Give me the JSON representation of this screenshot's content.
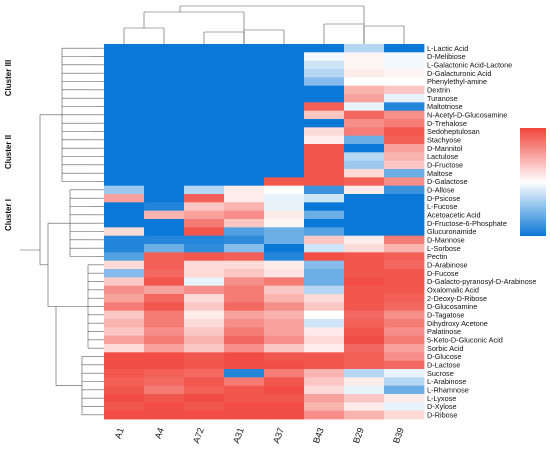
{
  "chart_data": {
    "type": "heatmap",
    "title": "",
    "xlabel": "",
    "ylabel": "",
    "columns": [
      "A1",
      "A4",
      "A72",
      "A31",
      "A37",
      "B43",
      "B29",
      "B39"
    ],
    "rows": [
      "L-Lactic Acid",
      "D-Melibiose",
      "L-Galactonic Acid-Lactone",
      "D-Galacturonic Acid",
      "Phenylethyl-amine",
      "Dextrin",
      "Turanose",
      "Maltotriose",
      "N-Acetyl-D-Glucosamine",
      "D-Trehalose",
      "Sedoheptulosan",
      "Stachyose",
      "D-Mannitol",
      "Lactulose",
      "D-Fructose",
      "Maltose",
      "D-Galactose",
      "D-Allose",
      "D-Psicose",
      "L-Fucose",
      "Acetoacetic Acid",
      "D-Fructose-6-Phosphate",
      "Glucuronamide",
      "D-Mannose",
      "L-Sorbose",
      "Pectin",
      "D-Arabinose",
      "D-Fucose",
      "D-Galacto-pyranosyl-D-Arabinose",
      "Oxalomalic Acid",
      "2-Deoxy-D-Ribose",
      "D-Glucosamine",
      "D-Tagatose",
      "Dihydroxy Acetone",
      "Palatinose",
      "5-Keto-D-Gluconic Acid",
      "Sorbic Acid",
      "D-Glucose",
      "D-Lactose",
      "Sucrose",
      "L-Arabinose",
      "L-Rhamnose",
      "L-Lyxose",
      "D-Xylose",
      "D-Ribose"
    ],
    "values": [
      [
        -1,
        -1,
        -1,
        -1,
        -1,
        -1,
        -0.3,
        -1
      ],
      [
        -1,
        -1,
        -1,
        -1,
        -1,
        -0.05,
        0.05,
        -0.05
      ],
      [
        -1,
        -1,
        -1,
        -1,
        -1,
        -0.2,
        0.05,
        -0.05
      ],
      [
        -1,
        -1,
        -1,
        -1,
        -1,
        -0.3,
        0.1,
        0.05
      ],
      [
        -1,
        -1,
        -1,
        -1,
        -1,
        -0.5,
        0,
        0
      ],
      [
        -1,
        -1,
        -1,
        -1,
        -1,
        -1,
        0.4,
        0.3
      ],
      [
        -1,
        -1,
        -1,
        -1,
        -1,
        -1,
        0.5,
        -0.1
      ],
      [
        -1,
        -1,
        -1,
        -1,
        -1,
        0.85,
        -0.1,
        -0.9
      ],
      [
        -1,
        -1,
        -1,
        -1,
        -1,
        0.3,
        0.8,
        0.6
      ],
      [
        -1,
        -1,
        -1,
        -1,
        -1,
        -1,
        0.6,
        0.7
      ],
      [
        -1,
        -1,
        -1,
        -1,
        -1,
        0.2,
        0.7,
        0.9
      ],
      [
        -1,
        -1,
        -1,
        -1,
        -1,
        0.1,
        -0.6,
        0.85
      ],
      [
        -1,
        -1,
        -1,
        -1,
        -1,
        0.9,
        -1,
        0.5
      ],
      [
        -1,
        -1,
        -1,
        -1,
        -1,
        0.9,
        -0.3,
        0.4
      ],
      [
        -1,
        -1,
        -1,
        -1,
        -1,
        0.9,
        -0.4,
        0.3
      ],
      [
        -1,
        -1,
        -1,
        -1,
        -1,
        0.9,
        0.2,
        -0.6
      ],
      [
        -1,
        -1,
        -1,
        -1,
        0.9,
        0.9,
        0.85,
        0.6
      ],
      [
        -0.4,
        -1,
        -0.3,
        0.1,
        0,
        -0.8,
        0.1,
        -0.8
      ],
      [
        0.5,
        -1,
        0.85,
        0.1,
        -0.1,
        -0.2,
        -1,
        -1
      ],
      [
        -1,
        -0.9,
        0.3,
        0.4,
        -0.1,
        -1,
        -1,
        -1
      ],
      [
        -1,
        0.4,
        0.5,
        0.6,
        0.1,
        -0.6,
        -1,
        -1
      ],
      [
        -1,
        -1,
        0.7,
        0.3,
        0.05,
        -1,
        -1,
        -1
      ],
      [
        0.2,
        -1,
        0.9,
        -0.7,
        -0.6,
        -0.7,
        -1,
        -1
      ],
      [
        -0.9,
        -0.9,
        -0.9,
        -0.85,
        -0.6,
        0.3,
        0.1,
        0.7
      ],
      [
        -0.9,
        -0.6,
        -0.85,
        -0.5,
        -1,
        -0.2,
        0.2,
        0.4
      ],
      [
        -0.7,
        0.85,
        0.9,
        0.85,
        -0.9,
        0.95,
        0.9,
        0.85
      ],
      [
        0.2,
        0.85,
        0.2,
        0.2,
        0.1,
        -0.5,
        0.9,
        0.8
      ],
      [
        -0.5,
        0.8,
        0.2,
        0.3,
        0.15,
        -0.6,
        0.9,
        0.9
      ],
      [
        0.3,
        0.9,
        -0.1,
        0.6,
        0.7,
        -0.6,
        0.95,
        0.9
      ],
      [
        0.6,
        0.5,
        0.6,
        0.7,
        0.3,
        -0.3,
        0.9,
        0.9
      ],
      [
        0.5,
        0.8,
        0.2,
        0.7,
        0.4,
        0.2,
        0.9,
        0.85
      ],
      [
        0.7,
        0.9,
        0.3,
        0.8,
        0.6,
        0.3,
        0.9,
        0.8
      ],
      [
        0.3,
        0.7,
        0.1,
        0.5,
        0.4,
        0,
        0.8,
        0.6
      ],
      [
        0.4,
        0.7,
        0.2,
        0.6,
        0.5,
        -0.2,
        0.85,
        0.7
      ],
      [
        0.3,
        0.6,
        0.3,
        0.7,
        0.5,
        0.1,
        0.9,
        0.6
      ],
      [
        0.5,
        0.7,
        0.4,
        0.8,
        0.6,
        0.2,
        0.95,
        0.7
      ],
      [
        0.2,
        0.5,
        0.3,
        0.6,
        0.3,
        0.1,
        0.8,
        0.5
      ],
      [
        0.95,
        0.95,
        0.9,
        0.95,
        0.9,
        0.9,
        0.85,
        0.6
      ],
      [
        0.95,
        0.95,
        0.9,
        0.95,
        0.95,
        0.9,
        0.85,
        0.8
      ],
      [
        0.9,
        0.85,
        0.8,
        -0.9,
        0.7,
        0.4,
        -0.3,
        -0.1
      ],
      [
        0.85,
        0.8,
        0.9,
        0.7,
        0.9,
        0.3,
        0.1,
        -0.3
      ],
      [
        0.9,
        0.7,
        0.85,
        0.9,
        0.95,
        0.2,
        -0.1,
        -0.6
      ],
      [
        0.95,
        0.9,
        0.95,
        0.9,
        0.9,
        0.5,
        0.3,
        0.1
      ],
      [
        0.9,
        0.95,
        0.9,
        0.95,
        0.95,
        0.4,
        0.1,
        -0.1
      ],
      [
        0.95,
        0.95,
        0.95,
        0.95,
        0.95,
        0.6,
        0.4,
        0.2
      ]
    ],
    "clusters": [
      "Cluster III",
      "Cluster II",
      "Cluster I"
    ],
    "color_scale": [
      "#0a78d6",
      "#ffffff",
      "#f0443a"
    ],
    "legend": "right"
  }
}
